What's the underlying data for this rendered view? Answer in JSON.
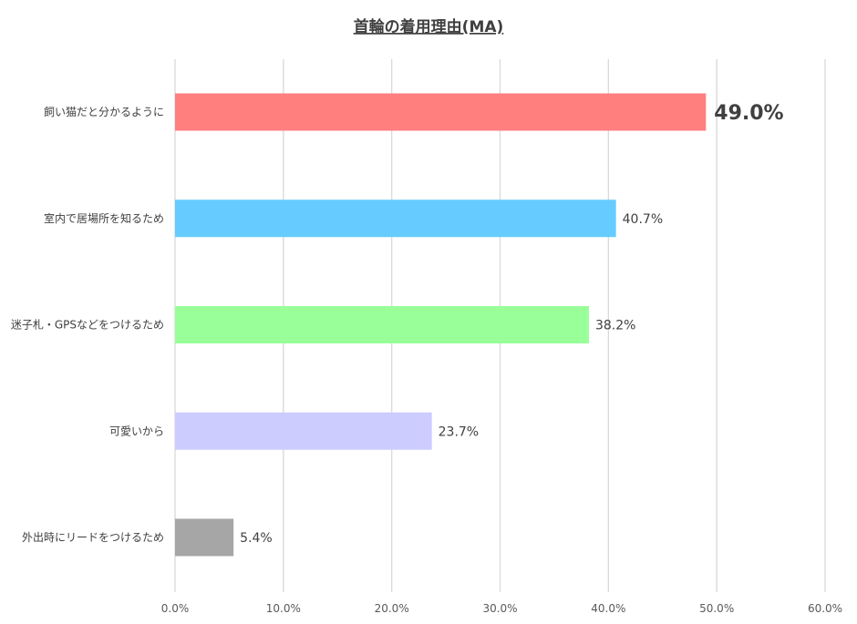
{
  "chart_data": {
    "type": "bar",
    "orientation": "horizontal",
    "title": "首輪の着用理由(MA)",
    "categories": [
      "飼い猫だと分かるように",
      "室内で居場所を知るため",
      "迷子札・GPSなどをつけるため",
      "可愛いから",
      "外出時にリードをつけるため"
    ],
    "values": [
      49.0,
      40.7,
      38.2,
      23.7,
      5.4
    ],
    "value_labels": [
      "49.0%",
      "40.7%",
      "38.2%",
      "23.7%",
      "5.4%"
    ],
    "colors": [
      "#FF7F7F",
      "#66CCFF",
      "#99FF99",
      "#CCCCFF",
      "#A6A6A6"
    ],
    "xlim": [
      0,
      60
    ],
    "x_ticks": [
      0,
      10,
      20,
      30,
      40,
      50,
      60
    ],
    "x_tick_labels": [
      "0.0%",
      "10.0%",
      "20.0%",
      "30.0%",
      "40.0%",
      "50.0%",
      "60.0%"
    ],
    "highlight_index": 0,
    "grid": true,
    "legend": "none",
    "grid_color": "#D9D9D9"
  }
}
